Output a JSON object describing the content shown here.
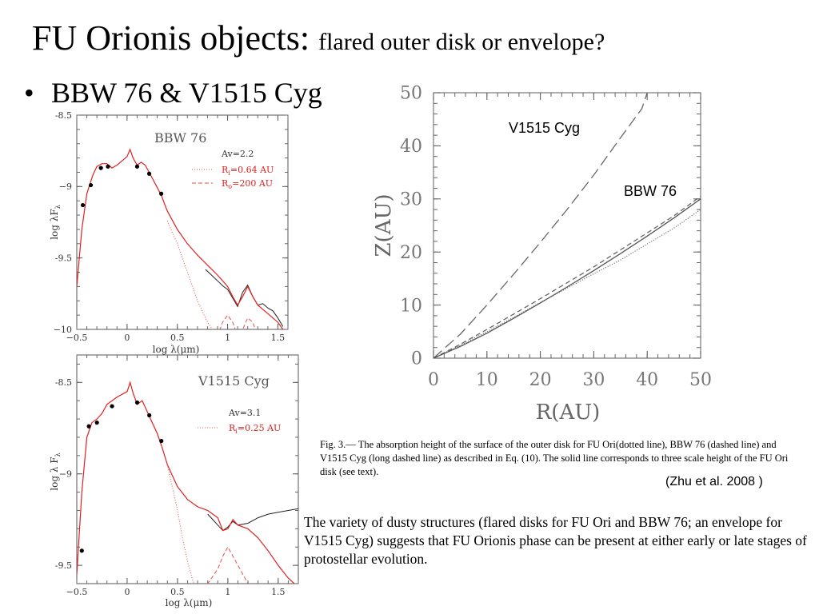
{
  "slide": {
    "title_main": "FU Orionis objects:",
    "title_sub": "flared outer disk or envelope?",
    "bullet": "BBW 76 & V1515 Cyg",
    "caption": "Fig. 3.— The absorption height of the surface of the outer disk for FU Ori(dotted line), BBW 76 (dashed line) and V1515 Cyg (long dashed line) as described in Eq. (10). The solid line corresponds to three scale height of the FU Ori disk (see text).",
    "citation": "(Zhu et al. 2008 )",
    "summary": "The variety of dusty structures (flared disks for FU Ori and BBW 76; an envelope for V1515 Cyg) suggests that FU Orionis  phase can be present at either early or late stages of protostellar evolution."
  },
  "chart_data": [
    {
      "type": "line",
      "object": "BBW 76",
      "xlabel": "log λ(μm)",
      "ylabel": "log λF",
      "ylabel_sub": "λ",
      "xlim": [
        -0.5,
        1.6
      ],
      "ylim": [
        -10,
        -8.5
      ],
      "xticks": [
        -0.5,
        0,
        0.5,
        1,
        1.5
      ],
      "xtick_labels": [
        "−0.5",
        "0",
        "0.5",
        "1",
        "1.5"
      ],
      "yticks": [
        -10,
        -9.5,
        -9,
        -8.5
      ],
      "ytick_labels": [
        "−10",
        "-9.5",
        "−9",
        "-8.5"
      ],
      "annotations": {
        "av": "Av=2.2",
        "ri_pre": "R",
        "ri_sub": "i",
        "ri_post": "=0.64 AU",
        "ro_pre": "R",
        "ro_sub": "o",
        "ro_post": "=200 AU"
      },
      "photometry": {
        "x": [
          -0.44,
          -0.36,
          -0.26,
          -0.19,
          0.1,
          0.22,
          0.34
        ],
        "y": [
          -9.13,
          -8.99,
          -8.87,
          -8.86,
          -8.86,
          -8.91,
          -9.05
        ]
      },
      "spectrum_black": {
        "x": [
          0.78,
          0.84,
          0.9,
          0.96,
          1.0,
          1.05,
          1.1,
          1.15,
          1.2,
          1.25,
          1.3,
          1.35,
          1.4,
          1.45,
          1.5,
          1.55
        ],
        "y": [
          -9.58,
          -9.62,
          -9.66,
          -9.7,
          -9.72,
          -9.78,
          -9.84,
          -9.74,
          -9.69,
          -9.77,
          -9.83,
          -9.82,
          -9.85,
          -9.87,
          -9.92,
          -9.98
        ]
      },
      "model_solid": {
        "x": [
          -0.5,
          -0.45,
          -0.4,
          -0.34,
          -0.3,
          -0.25,
          -0.2,
          -0.15,
          -0.1,
          -0.05,
          0.0,
          0.03,
          0.06,
          0.1,
          0.14,
          0.18,
          0.22,
          0.28,
          0.34,
          0.4,
          0.5,
          0.6,
          0.7,
          0.8,
          0.9,
          1.0,
          1.05,
          1.1,
          1.15,
          1.2,
          1.25,
          1.3,
          1.4,
          1.5,
          1.6
        ],
        "y": [
          -9.7,
          -9.3,
          -9.05,
          -8.92,
          -8.86,
          -8.84,
          -8.84,
          -8.87,
          -8.85,
          -8.82,
          -8.79,
          -8.74,
          -8.8,
          -8.85,
          -8.83,
          -8.85,
          -8.9,
          -8.98,
          -9.06,
          -9.17,
          -9.3,
          -9.4,
          -9.48,
          -9.55,
          -9.62,
          -9.7,
          -9.77,
          -9.83,
          -9.77,
          -9.7,
          -9.77,
          -9.83,
          -9.89,
          -9.95,
          -10.05
        ]
      },
      "model_dotted": {
        "x": [
          0.4,
          0.5,
          0.6,
          0.7,
          0.8,
          0.85,
          0.9
        ],
        "y": [
          -9.24,
          -9.4,
          -9.6,
          -9.8,
          -9.95,
          -10.0,
          -10.05
        ]
      },
      "model_dashed": {
        "x": [
          0.9,
          0.95,
          1.0,
          1.05,
          1.1,
          1.15,
          1.2,
          1.25,
          1.3
        ],
        "y": [
          -10.05,
          -9.95,
          -9.9,
          -9.95,
          -10.05,
          -10.0,
          -9.92,
          -9.95,
          -10.05
        ]
      }
    },
    {
      "type": "line",
      "object": "V1515 Cyg",
      "xlabel": "log λ(μm)",
      "ylabel": "log λ F",
      "ylabel_sub": "λ",
      "xlim": [
        -0.5,
        1.7
      ],
      "ylim": [
        -9.6,
        -8.35
      ],
      "xticks": [
        -0.5,
        0,
        0.5,
        1,
        1.5
      ],
      "xtick_labels": [
        "−0.5",
        "0",
        "0.5",
        "1",
        "1.5"
      ],
      "yticks": [
        -9.5,
        -9,
        -8.5
      ],
      "ytick_labels": [
        "-9.5",
        "−9",
        "-8.5"
      ],
      "annotations": {
        "av": "Av=3.1",
        "ri_pre": "R",
        "ri_sub": "i",
        "ri_post": "=0.25 AU"
      },
      "photometry": {
        "x": [
          -0.45,
          -0.38,
          -0.3,
          -0.15,
          0.1,
          0.22,
          0.34
        ],
        "y": [
          -9.42,
          -8.74,
          -8.72,
          -8.63,
          -8.61,
          -8.68,
          -8.82
        ]
      },
      "spectrum_black": {
        "x": [
          0.8,
          0.85,
          0.9,
          0.95,
          1.0,
          1.05,
          1.1,
          1.2,
          1.3,
          1.4,
          1.5,
          1.6,
          1.7
        ],
        "y": [
          -9.22,
          -9.25,
          -9.28,
          -9.31,
          -9.29,
          -9.26,
          -9.28,
          -9.27,
          -9.24,
          -9.22,
          -9.21,
          -9.2,
          -9.19
        ]
      },
      "model_solid": {
        "x": [
          -0.5,
          -0.45,
          -0.4,
          -0.35,
          -0.3,
          -0.25,
          -0.2,
          -0.1,
          0.0,
          0.03,
          0.06,
          0.1,
          0.15,
          0.2,
          0.25,
          0.3,
          0.35,
          0.4,
          0.5,
          0.6,
          0.7,
          0.8,
          0.9,
          0.95,
          1.0,
          1.05,
          1.1,
          1.2,
          1.3,
          1.4,
          1.5,
          1.6,
          1.7
        ],
        "y": [
          -9.55,
          -9.1,
          -8.8,
          -8.72,
          -8.7,
          -8.67,
          -8.62,
          -8.58,
          -8.55,
          -8.5,
          -8.56,
          -8.62,
          -8.6,
          -8.66,
          -8.72,
          -8.78,
          -8.86,
          -8.95,
          -9.07,
          -9.14,
          -9.18,
          -9.2,
          -9.24,
          -9.31,
          -9.3,
          -9.25,
          -9.28,
          -9.3,
          -9.35,
          -9.42,
          -9.5,
          -9.57,
          -9.62
        ]
      },
      "model_dotted": {
        "x": [
          0.4,
          0.5,
          0.55,
          0.6,
          0.65,
          0.7
        ],
        "y": [
          -8.95,
          -9.2,
          -9.35,
          -9.48,
          -9.58,
          -9.65
        ]
      },
      "model_dashed": {
        "x": [
          0.7,
          0.8,
          0.9,
          0.95,
          1.0,
          1.05,
          1.1,
          1.2,
          1.3,
          1.4
        ],
        "y": [
          -9.65,
          -9.6,
          -9.52,
          -9.45,
          -9.4,
          -9.45,
          -9.5,
          -9.6,
          -9.65,
          -9.7
        ]
      }
    },
    {
      "type": "line",
      "xlabel": "R(AU)",
      "ylabel": "Z(AU)",
      "xlim": [
        0,
        50
      ],
      "ylim": [
        0,
        50
      ],
      "xticks": [
        0,
        10,
        20,
        30,
        40,
        50
      ],
      "yticks": [
        0,
        10,
        20,
        30,
        40,
        50
      ],
      "labels": {
        "v1515": "V1515 Cyg",
        "bbw76": "BBW 76"
      },
      "series": [
        {
          "style": "long-dashed",
          "x": [
            0,
            5,
            10,
            15,
            20,
            25,
            30,
            35,
            39,
            40
          ],
          "y": [
            0,
            4.5,
            10,
            15.8,
            21.8,
            28,
            34.5,
            41.5,
            47,
            50
          ]
        },
        {
          "style": "dashed",
          "x": [
            0,
            5,
            10,
            15,
            20,
            25,
            30,
            35,
            40,
            45,
            50
          ],
          "y": [
            0,
            2.6,
            5.4,
            8.3,
            11.2,
            14.2,
            17.2,
            20.4,
            23.6,
            26.8,
            30.5
          ]
        },
        {
          "style": "solid",
          "x": [
            0,
            5,
            10,
            15,
            20,
            25,
            30,
            35,
            40,
            45,
            50
          ],
          "y": [
            0,
            2.2,
            4.7,
            7.5,
            10.4,
            13.4,
            16.5,
            19.7,
            23.0,
            26.4,
            30
          ]
        },
        {
          "style": "dotted",
          "x": [
            0,
            5,
            10,
            15,
            20,
            25,
            30,
            35,
            40,
            45,
            50
          ],
          "y": [
            0,
            2.4,
            5.0,
            7.7,
            10.5,
            13.2,
            15.9,
            18.5,
            21.5,
            24.5,
            28
          ]
        }
      ]
    }
  ]
}
